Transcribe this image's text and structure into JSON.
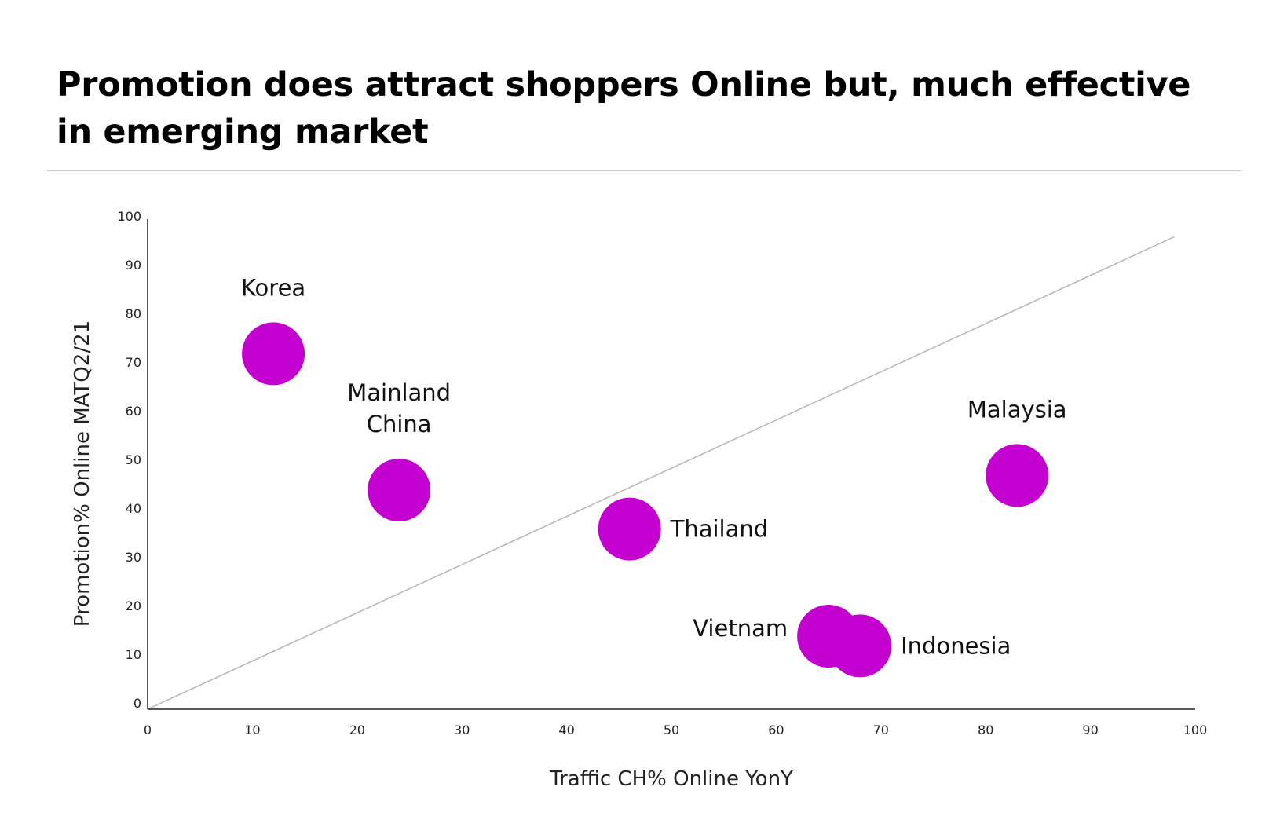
{
  "title": "Promotion does attract shoppers Online but, much effective in emerging market",
  "colors": {
    "bubble": "#c400d0",
    "axis": "#222222",
    "reference_line": "#b5b5b5",
    "divider": "#c8c8c8"
  },
  "chart_data": {
    "type": "scatter",
    "title": "Promotion does attract shoppers Online but, much effective in emerging market",
    "xlabel": "Traffic CH% Online YonY",
    "ylabel": "Promotion% Online MATQ2/21",
    "xlim": [
      0,
      100
    ],
    "ylim": [
      0,
      100
    ],
    "xticks": [
      0,
      10,
      20,
      30,
      40,
      50,
      60,
      70,
      80,
      90,
      100
    ],
    "yticks": [
      0,
      10,
      20,
      30,
      40,
      50,
      60,
      70,
      80,
      90,
      100
    ],
    "grid": false,
    "legend": "none",
    "reference_line": {
      "x": [
        0,
        98
      ],
      "y": [
        0,
        97
      ]
    },
    "points": [
      {
        "label": "Korea",
        "x": 12,
        "y": 73,
        "label_position": "above"
      },
      {
        "label": "Mainland China",
        "x": 24,
        "y": 45,
        "label_position": "above"
      },
      {
        "label": "Thailand",
        "x": 46,
        "y": 37,
        "label_position": "right"
      },
      {
        "label": "Malaysia",
        "x": 83,
        "y": 48,
        "label_position": "above"
      },
      {
        "label": "Vietnam",
        "x": 65,
        "y": 15,
        "label_position": "left"
      },
      {
        "label": "Indonesia",
        "x": 68,
        "y": 13,
        "label_position": "right"
      }
    ]
  }
}
